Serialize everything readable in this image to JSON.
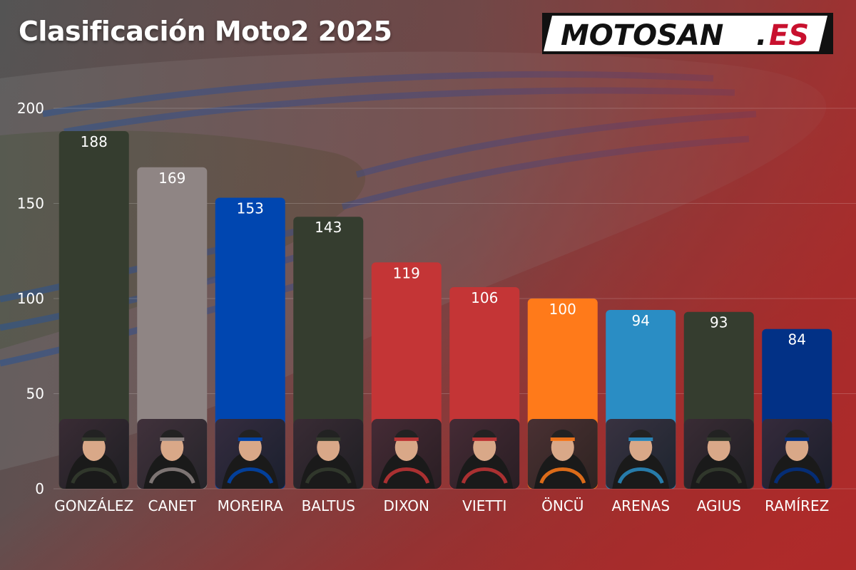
{
  "title": "Clasificación Moto2 2025",
  "logo": {
    "brand": "MOTOSAN",
    "dot": ".",
    "tld": "ES",
    "colors": {
      "text": "#111111",
      "tld": "#c8102e",
      "background": "#ffffff"
    }
  },
  "chart_data": {
    "type": "bar",
    "categories": [
      "GONZÁLEZ",
      "CANET",
      "MOREIRA",
      "BALTUS",
      "DIXON",
      "VIETTI",
      "ÖNCÜ",
      "ARENAS",
      "AGIUS",
      "RAMÍREZ"
    ],
    "values": [
      188,
      169,
      153,
      143,
      119,
      106,
      100,
      94,
      93,
      84
    ],
    "colors": [
      "#353d2f",
      "#8f8584",
      "#0046b0",
      "#353d2f",
      "#c43536",
      "#c43536",
      "#ff7a1a",
      "#2a8dc4",
      "#353d2f",
      "#023186"
    ],
    "ylim": [
      0,
      200
    ],
    "yticks": [
      0,
      50,
      100,
      150,
      200
    ],
    "grid": true,
    "legend": "none",
    "data_labels": true,
    "rider_photos": true
  }
}
